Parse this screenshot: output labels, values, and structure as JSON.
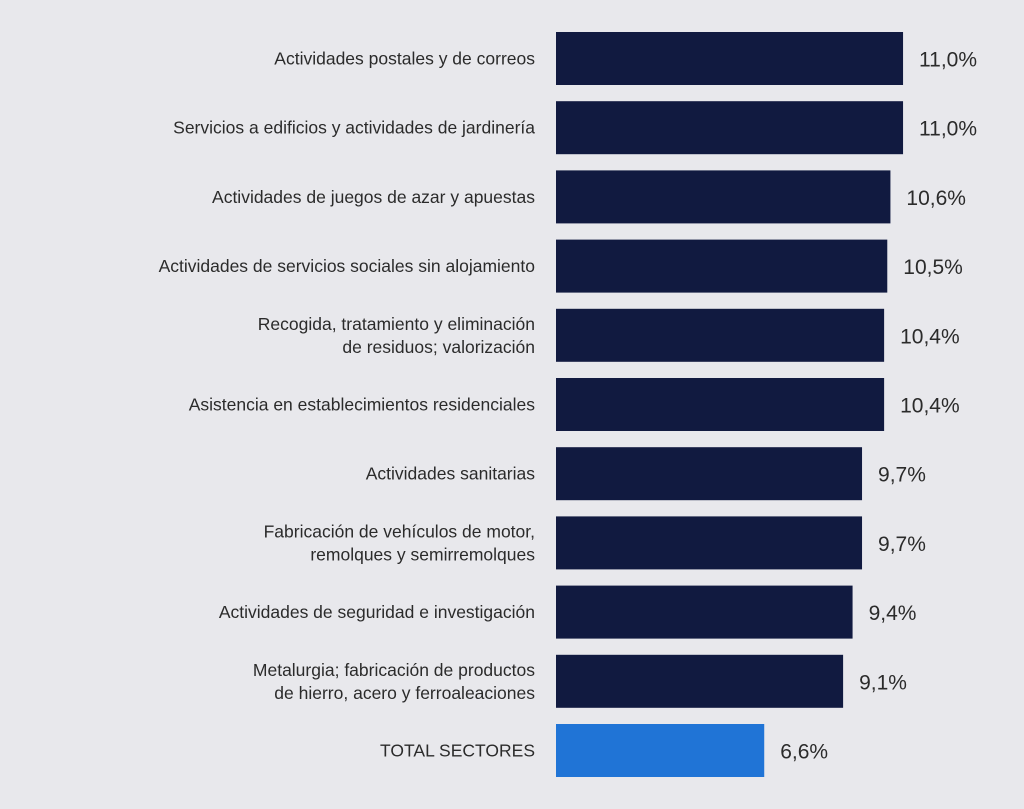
{
  "chart_data": {
    "type": "bar",
    "orientation": "horizontal",
    "categories": [
      [
        "Actividades postales y de correos"
      ],
      [
        "Servicios a edificios y actividades de jardinería"
      ],
      [
        "Actividades de juegos de azar y apuestas"
      ],
      [
        "Actividades de servicios sociales sin alojamiento"
      ],
      [
        "Recogida, tratamiento y eliminación",
        "de residuos; valorización"
      ],
      [
        "Asistencia en establecimientos residenciales"
      ],
      [
        "Actividades sanitarias"
      ],
      [
        "Fabricación de vehículos de motor,",
        "remolques y semirremolques"
      ],
      [
        "Actividades de seguridad e investigación"
      ],
      [
        "Metalurgia; fabricación de productos",
        "de hierro, acero y ferroaleaciones"
      ],
      [
        "TOTAL SECTORES"
      ]
    ],
    "values": [
      11.0,
      11.0,
      10.6,
      10.5,
      10.4,
      10.4,
      9.7,
      9.7,
      9.4,
      9.1,
      6.6
    ],
    "value_labels": [
      "11,0%",
      "11,0%",
      "10,6%",
      "10,5%",
      "10,4%",
      "10,4%",
      "9,7%",
      "9,7%",
      "9,4%",
      "9,1%",
      "6,6%"
    ],
    "highlight_index": 10,
    "colors": {
      "bar": "#111a40",
      "highlight_bar": "#2074d6",
      "highlight_text": "#4a88dc",
      "text": "#2b2b2b",
      "background": "#e8e8ec"
    },
    "grid": false,
    "legend": "none"
  }
}
